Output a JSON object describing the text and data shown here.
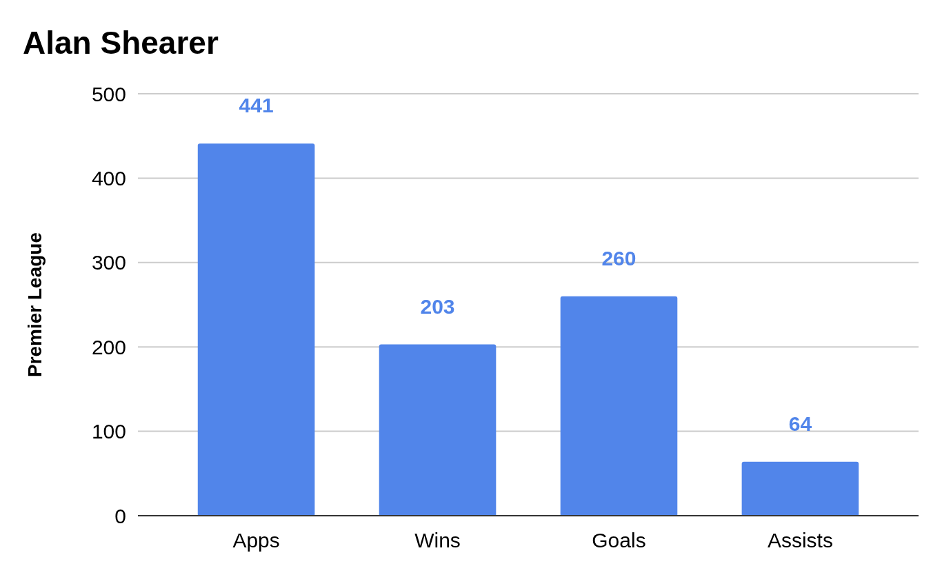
{
  "chart_data": {
    "type": "bar",
    "title": "Alan Shearer",
    "ylabel": "Premier League",
    "categories": [
      "Apps",
      "Wins",
      "Goals",
      "Assists"
    ],
    "values": [
      441,
      203,
      260,
      64
    ],
    "color": "#5185ea",
    "ylim": [
      0,
      500
    ],
    "yticks": [
      0,
      100,
      200,
      300,
      400,
      500
    ],
    "grid": "y",
    "data_labels": true
  }
}
